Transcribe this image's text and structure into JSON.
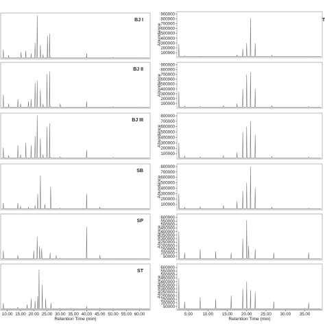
{
  "figure": {
    "left_column": {
      "panels": [
        "BJ I",
        "BJ II",
        "BJ III",
        "SB",
        "SP",
        "ST"
      ],
      "xaxis": {
        "ticks": [
          "10.00",
          "15.00",
          "20.00",
          "25.00",
          "30.00",
          "35.00",
          "40.00",
          "45.00",
          "50.00",
          "55.00",
          "60.00"
        ],
        "label": "Retention Time (min)"
      }
    },
    "right_column": {
      "panels": [
        "T",
        "",
        "",
        "",
        "",
        ""
      ],
      "yaxis_label": "Abundance",
      "yticks": [
        [
          "100000",
          "200000",
          "300000",
          "400000",
          "500000",
          "600000",
          "700000",
          "800000",
          "900000"
        ],
        [
          "100000",
          "200000",
          "300000",
          "400000",
          "500000",
          "600000",
          "700000",
          "800000",
          "900000"
        ],
        [
          "100000",
          "200000",
          "300000",
          "400000",
          "500000",
          "600000",
          "700000",
          "800000"
        ],
        [
          "100000",
          "200000",
          "300000",
          "400000",
          "500000",
          "600000",
          "700000",
          "800000"
        ],
        [
          "50000",
          "100000",
          "150000",
          "200000",
          "250000",
          "300000",
          "350000",
          "400000",
          "450000",
          "500000",
          "550000",
          "600000"
        ],
        [
          "50000",
          "100000",
          "150000",
          "200000",
          "250000",
          "300000",
          "350000",
          "400000",
          "450000",
          "500000",
          "550000",
          "600000"
        ]
      ],
      "xaxis": {
        "ticks": [
          "5.00",
          "10.00",
          "15.00",
          "20.00",
          "25.00",
          "30.00",
          "35.00"
        ],
        "label": "Retention Time (min)"
      }
    }
  },
  "chart_data": [
    {
      "type": "line",
      "series": [
        {
          "name": "BJ I",
          "x": [
            8.5,
            10.5,
            14,
            15.2,
            17,
            19,
            20.5,
            21.3,
            22.5,
            23.5,
            25.2,
            26,
            26.4,
            30,
            40,
            50,
            60
          ],
          "y": [
            20,
            8,
            4,
            15,
            18,
            12,
            35,
            95,
            30,
            10,
            50,
            55,
            4,
            3,
            12,
            4,
            3
          ]
        }
      ],
      "xlim": [
        7.5,
        64
      ]
    },
    {
      "type": "line",
      "series": [
        {
          "name": "BJ II",
          "x": [
            8.5,
            10.5,
            14,
            15,
            18,
            19,
            20.5,
            21.3,
            22.5,
            23.5,
            25,
            26,
            26.4,
            30,
            40,
            50,
            60
          ],
          "y": [
            30,
            10,
            20,
            10,
            15,
            20,
            55,
            60,
            40,
            10,
            75,
            80,
            4,
            10,
            15,
            4,
            3
          ]
        }
      ],
      "xlim": [
        7.5,
        64
      ]
    },
    {
      "type": "line",
      "series": [
        {
          "name": "BJ III",
          "x": [
            8.5,
            10.5,
            14,
            15,
            17,
            19,
            20.5,
            21.3,
            22.5,
            23.5,
            25,
            26,
            26.4,
            30,
            40,
            50,
            60
          ],
          "y": [
            25,
            8,
            30,
            10,
            35,
            30,
            50,
            95,
            45,
            10,
            70,
            78,
            4,
            5,
            20,
            4,
            3
          ]
        }
      ],
      "xlim": [
        7.5,
        64
      ]
    },
    {
      "type": "line",
      "series": [
        {
          "name": "SB",
          "x": [
            8.5,
            14,
            15,
            18,
            20.5,
            21.5,
            22.5,
            24.2,
            26.4,
            30,
            40,
            45,
            50,
            60
          ],
          "y": [
            15,
            15,
            8,
            6,
            10,
            35,
            75,
            12,
            50,
            4,
            35,
            6,
            3,
            3
          ]
        }
      ],
      "xlim": [
        7.5,
        64
      ]
    },
    {
      "type": "line",
      "series": [
        {
          "name": "SP",
          "x": [
            8.5,
            14,
            20,
            21.3,
            22.2,
            23,
            26.2,
            28.5,
            30,
            40,
            45,
            50,
            60
          ],
          "y": [
            20,
            10,
            20,
            50,
            30,
            25,
            15,
            10,
            4,
            72,
            10,
            3,
            3
          ]
        }
      ],
      "xlim": [
        7.5,
        64
      ]
    },
    {
      "type": "line",
      "series": [
        {
          "name": "ST",
          "x": [
            8.5,
            14,
            17.5,
            19,
            20.5,
            21.5,
            22,
            23.2,
            24.5,
            26.5,
            30,
            34,
            40,
            45,
            50,
            60
          ],
          "y": [
            15,
            6,
            12,
            25,
            20,
            30,
            88,
            55,
            25,
            15,
            4,
            4,
            8,
            4,
            3,
            3
          ]
        }
      ],
      "xlim": [
        7.5,
        64
      ]
    },
    {
      "type": "line",
      "series": [
        {
          "name": "T",
          "x": [
            2.5,
            4,
            8,
            14,
            17.5,
            19,
            20,
            21,
            22.2,
            26.5,
            36
          ],
          "y": [
            280000,
            40000,
            15000,
            20000,
            60000,
            180000,
            300000,
            820000,
            300000,
            50000,
            30000
          ]
        }
      ],
      "xlim": [
        2,
        39.5
      ],
      "ylim": [
        0,
        950000
      ]
    },
    {
      "type": "line",
      "series": [
        {
          "name": "",
          "x": [
            2.5,
            4,
            8,
            14,
            17.5,
            19,
            20,
            21,
            22.2,
            26.5,
            36
          ],
          "y": [
            350000,
            50000,
            40000,
            60000,
            100000,
            400000,
            700000,
            750000,
            400000,
            60000,
            40000
          ]
        }
      ],
      "xlim": [
        2,
        39.5
      ],
      "ylim": [
        0,
        950000
      ]
    },
    {
      "type": "line",
      "series": [
        {
          "name": "",
          "x": [
            2.5,
            4,
            8,
            14,
            17.5,
            19,
            20,
            21,
            22.2,
            26.5,
            36
          ],
          "y": [
            300000,
            60000,
            40000,
            70000,
            120000,
            500000,
            600000,
            700000,
            450000,
            50000,
            40000
          ]
        }
      ],
      "xlim": [
        2,
        39.5
      ],
      "ylim": [
        0,
        850000
      ]
    },
    {
      "type": "line",
      "series": [
        {
          "name": "",
          "x": [
            2.5,
            4,
            8,
            14,
            17.5,
            19,
            20,
            21,
            22.2,
            26.5,
            36
          ],
          "y": [
            300000,
            50000,
            60000,
            80000,
            150000,
            350000,
            500000,
            800000,
            400000,
            50000,
            30000
          ]
        }
      ],
      "xlim": [
        2,
        39.5
      ],
      "ylim": [
        0,
        850000
      ]
    },
    {
      "type": "line",
      "series": [
        {
          "name": "",
          "x": [
            2.5,
            4,
            8,
            12,
            16,
            19,
            20,
            20.5,
            22.2,
            27,
            36
          ],
          "y": [
            400000,
            100000,
            150000,
            120000,
            100000,
            300000,
            560000,
            200000,
            150000,
            100000,
            100000
          ]
        }
      ],
      "xlim": [
        2,
        39.5
      ],
      "ylim": [
        0,
        650000
      ]
    },
    {
      "type": "line",
      "series": [
        {
          "name": "",
          "x": [
            2.5,
            4,
            8,
            12,
            16,
            19,
            20,
            21,
            22.2,
            27,
            36
          ],
          "y": [
            450000,
            120000,
            180000,
            150000,
            200000,
            300000,
            400000,
            280000,
            250000,
            120000,
            100000
          ]
        }
      ],
      "xlim": [
        2,
        39.5
      ],
      "ylim": [
        0,
        650000
      ]
    }
  ]
}
